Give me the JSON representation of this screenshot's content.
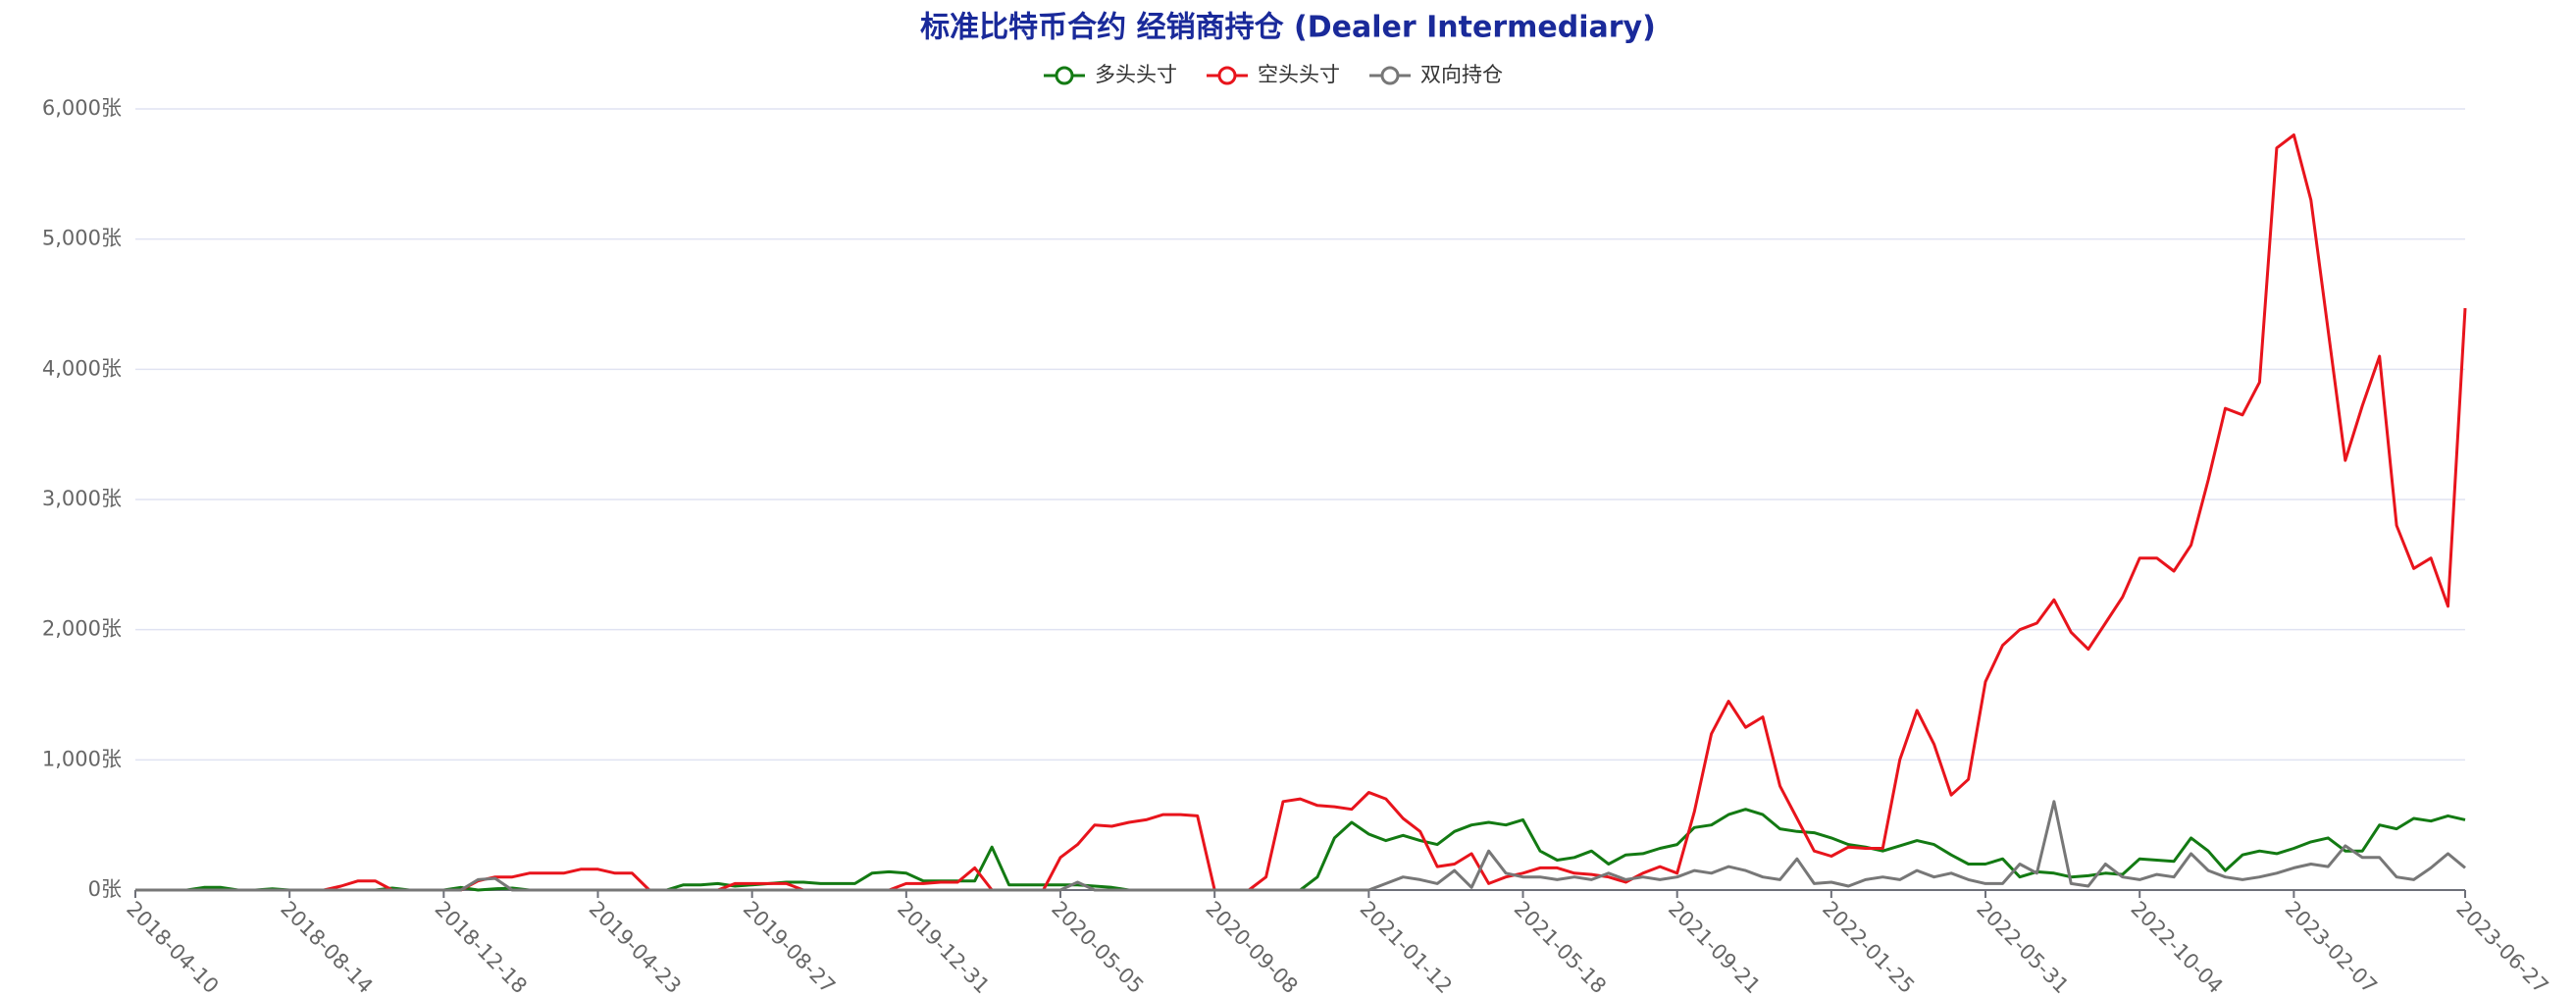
{
  "chart_data": {
    "type": "line",
    "title": "标准比特币合约 经销商持仓 (Dealer Intermediary)",
    "legend_position": "top",
    "grid": true,
    "categories": [
      "2018-04-10",
      null,
      null,
      null,
      null,
      null,
      null,
      null,
      null,
      "2018-08-14",
      null,
      null,
      null,
      null,
      null,
      null,
      null,
      null,
      "2018-12-18",
      null,
      null,
      null,
      null,
      null,
      null,
      null,
      null,
      "2019-04-23",
      null,
      null,
      null,
      null,
      null,
      null,
      null,
      null,
      "2019-08-27",
      null,
      null,
      null,
      null,
      null,
      null,
      null,
      null,
      "2019-12-31",
      null,
      null,
      null,
      null,
      null,
      null,
      null,
      null,
      "2020-05-05",
      null,
      null,
      null,
      null,
      null,
      null,
      null,
      null,
      "2020-09-08",
      null,
      null,
      null,
      null,
      null,
      null,
      null,
      null,
      "2021-01-12",
      null,
      null,
      null,
      null,
      null,
      null,
      null,
      null,
      "2021-05-18",
      null,
      null,
      null,
      null,
      null,
      null,
      null,
      null,
      "2021-09-21",
      null,
      null,
      null,
      null,
      null,
      null,
      null,
      null,
      "2022-01-25",
      null,
      null,
      null,
      null,
      null,
      null,
      null,
      null,
      "2022-05-31",
      null,
      null,
      null,
      null,
      null,
      null,
      null,
      null,
      "2022-10-04",
      null,
      null,
      null,
      null,
      null,
      null,
      null,
      null,
      "2023-02-07",
      null,
      null,
      null,
      null,
      null,
      null,
      null,
      null,
      null,
      "2023-06-27"
    ],
    "ylim": [
      0,
      6000
    ],
    "yticks": [
      {
        "value": 0,
        "label": "0张"
      },
      {
        "value": 1000,
        "label": "1,000张"
      },
      {
        "value": 2000,
        "label": "2,000张"
      },
      {
        "value": 3000,
        "label": "3,000张"
      },
      {
        "value": 4000,
        "label": "4,000张"
      },
      {
        "value": 5000,
        "label": "5,000张"
      },
      {
        "value": 6000,
        "label": "6,000张"
      }
    ],
    "series": [
      {
        "name": "多头头寸",
        "color": "#137a13",
        "values": [
          0,
          0,
          0,
          0,
          20,
          20,
          0,
          0,
          10,
          0,
          0,
          0,
          0,
          0,
          0,
          15,
          0,
          0,
          0,
          20,
          0,
          10,
          15,
          0,
          0,
          0,
          0,
          0,
          0,
          0,
          0,
          0,
          40,
          40,
          50,
          30,
          40,
          50,
          60,
          60,
          50,
          50,
          50,
          130,
          140,
          130,
          70,
          70,
          70,
          70,
          330,
          40,
          40,
          40,
          40,
          40,
          30,
          20,
          0,
          0,
          0,
          0,
          0,
          0,
          0,
          0,
          0,
          0,
          0,
          100,
          400,
          520,
          430,
          380,
          420,
          380,
          350,
          450,
          500,
          520,
          500,
          540,
          300,
          230,
          250,
          300,
          200,
          270,
          280,
          320,
          350,
          480,
          500,
          580,
          620,
          580,
          470,
          450,
          440,
          400,
          350,
          330,
          300,
          340,
          380,
          350,
          270,
          200,
          200,
          240,
          100,
          140,
          130,
          100,
          110,
          130,
          120,
          240,
          230,
          220,
          400,
          300,
          150,
          270,
          300,
          280,
          320,
          370,
          400,
          300,
          300,
          500,
          470,
          550,
          530,
          570,
          540
        ]
      },
      {
        "name": "空头头寸",
        "color": "#e8141c",
        "values": [
          0,
          0,
          0,
          0,
          0,
          0,
          0,
          0,
          0,
          0,
          0,
          0,
          30,
          70,
          70,
          0,
          0,
          0,
          0,
          0,
          70,
          100,
          100,
          130,
          130,
          130,
          160,
          160,
          130,
          130,
          0,
          0,
          0,
          0,
          0,
          50,
          50,
          50,
          50,
          0,
          0,
          0,
          0,
          0,
          0,
          50,
          50,
          60,
          60,
          170,
          0,
          0,
          0,
          0,
          250,
          350,
          500,
          490,
          520,
          540,
          580,
          580,
          570,
          0,
          0,
          0,
          100,
          680,
          700,
          650,
          640,
          620,
          750,
          700,
          550,
          450,
          180,
          200,
          280,
          50,
          100,
          130,
          170,
          170,
          130,
          120,
          100,
          60,
          130,
          180,
          130,
          600,
          1200,
          1450,
          1250,
          1330,
          800,
          550,
          300,
          260,
          330,
          320,
          320,
          1000,
          1380,
          1120,
          730,
          850,
          1600,
          1880,
          2000,
          2050,
          2230,
          1980,
          1850,
          2050,
          2250,
          2550,
          2550,
          2450,
          2650,
          3150,
          3700,
          3650,
          3900,
          5700,
          5800,
          5300,
          4300,
          3300,
          3720,
          4100,
          2800,
          2470,
          2550,
          2180,
          4470
        ]
      },
      {
        "name": "双向持仓",
        "color": "#777777",
        "values": [
          0,
          0,
          0,
          0,
          0,
          0,
          0,
          0,
          0,
          0,
          0,
          0,
          0,
          0,
          0,
          0,
          0,
          0,
          0,
          0,
          80,
          90,
          0,
          0,
          0,
          0,
          0,
          0,
          0,
          0,
          0,
          0,
          0,
          0,
          0,
          0,
          0,
          0,
          0,
          0,
          0,
          0,
          0,
          0,
          0,
          0,
          0,
          0,
          0,
          0,
          0,
          0,
          0,
          0,
          0,
          60,
          0,
          0,
          0,
          0,
          0,
          0,
          0,
          0,
          0,
          0,
          0,
          0,
          0,
          0,
          0,
          0,
          0,
          50,
          100,
          80,
          50,
          150,
          20,
          300,
          130,
          100,
          100,
          80,
          100,
          80,
          130,
          80,
          100,
          80,
          100,
          150,
          130,
          180,
          150,
          100,
          80,
          240,
          50,
          60,
          30,
          80,
          100,
          80,
          150,
          100,
          130,
          80,
          50,
          50,
          200,
          130,
          680,
          50,
          30,
          200,
          100,
          80,
          120,
          100,
          280,
          150,
          100,
          80,
          100,
          130,
          170,
          200,
          180,
          340,
          250,
          250,
          100,
          80,
          170,
          280,
          170
        ]
      }
    ]
  }
}
